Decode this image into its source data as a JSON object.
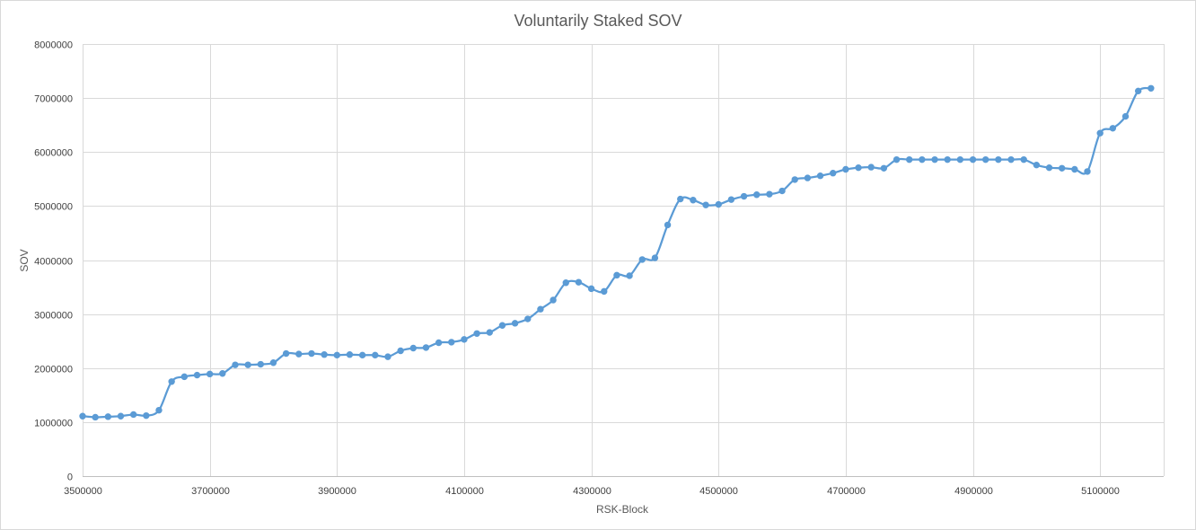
{
  "chart_data": {
    "type": "line",
    "title": "Voluntarily Staked SOV",
    "xlabel": "RSK-Block",
    "ylabel": "SOV",
    "xlim": [
      3500000,
      5200000
    ],
    "ylim": [
      0,
      8000000
    ],
    "x_ticks": [
      "3500000",
      "3700000",
      "3900000",
      "4100000",
      "4300000",
      "4500000",
      "4700000",
      "4900000",
      "5100000"
    ],
    "y_ticks": [
      "0",
      "1000000",
      "2000000",
      "3000000",
      "4000000",
      "5000000",
      "6000000",
      "7000000",
      "8000000"
    ],
    "grid": true,
    "legend": "none",
    "markers": true,
    "smoothed": true,
    "line_color": "#5B9BD5",
    "series": [
      {
        "x": [
          3500000,
          3520000,
          3540000,
          3560000,
          3580000,
          3600000,
          3620000,
          3640000,
          3660000,
          3680000,
          3700000,
          3720000,
          3740000,
          3760000,
          3780000,
          3800000,
          3820000,
          3840000,
          3860000,
          3880000,
          3900000,
          3920000,
          3940000,
          3960000,
          3980000,
          4000000,
          4020000,
          4040000,
          4060000,
          4080000,
          4100000,
          4120000,
          4140000,
          4160000,
          4180000,
          4200000,
          4220000,
          4240000,
          4260000,
          4280000,
          4300000,
          4320000,
          4340000,
          4360000,
          4380000,
          4400000,
          4420000,
          4440000,
          4460000,
          4480000,
          4500000,
          4520000,
          4540000,
          4560000,
          4580000,
          4600000,
          4620000,
          4640000,
          4660000,
          4680000,
          4700000,
          4720000,
          4740000,
          4760000,
          4780000,
          4800000,
          4820000,
          4840000,
          4860000,
          4880000,
          4900000,
          4920000,
          4940000,
          4960000,
          4980000,
          5000000,
          5020000,
          5040000,
          5060000,
          5080000,
          5100000,
          5120000,
          5140000,
          5160000,
          5180000
        ],
        "values": [
          1110000,
          1090000,
          1100000,
          1110000,
          1140000,
          1120000,
          1220000,
          1750000,
          1840000,
          1870000,
          1890000,
          1900000,
          2060000,
          2060000,
          2070000,
          2100000,
          2270000,
          2260000,
          2270000,
          2250000,
          2240000,
          2250000,
          2240000,
          2240000,
          2210000,
          2320000,
          2370000,
          2380000,
          2470000,
          2480000,
          2530000,
          2640000,
          2660000,
          2790000,
          2830000,
          2910000,
          3090000,
          3260000,
          3580000,
          3590000,
          3470000,
          3420000,
          3720000,
          3710000,
          4010000,
          4040000,
          4650000,
          5130000,
          5110000,
          5020000,
          5030000,
          5120000,
          5180000,
          5210000,
          5220000,
          5280000,
          5490000,
          5520000,
          5560000,
          5610000,
          5680000,
          5710000,
          5720000,
          5700000,
          5860000,
          5860000,
          5860000,
          5860000,
          5860000,
          5860000,
          5860000,
          5860000,
          5860000,
          5860000,
          5860000,
          5760000,
          5710000,
          5700000,
          5680000,
          5640000,
          6350000,
          6440000,
          6660000,
          7130000,
          7180000
        ]
      }
    ]
  }
}
